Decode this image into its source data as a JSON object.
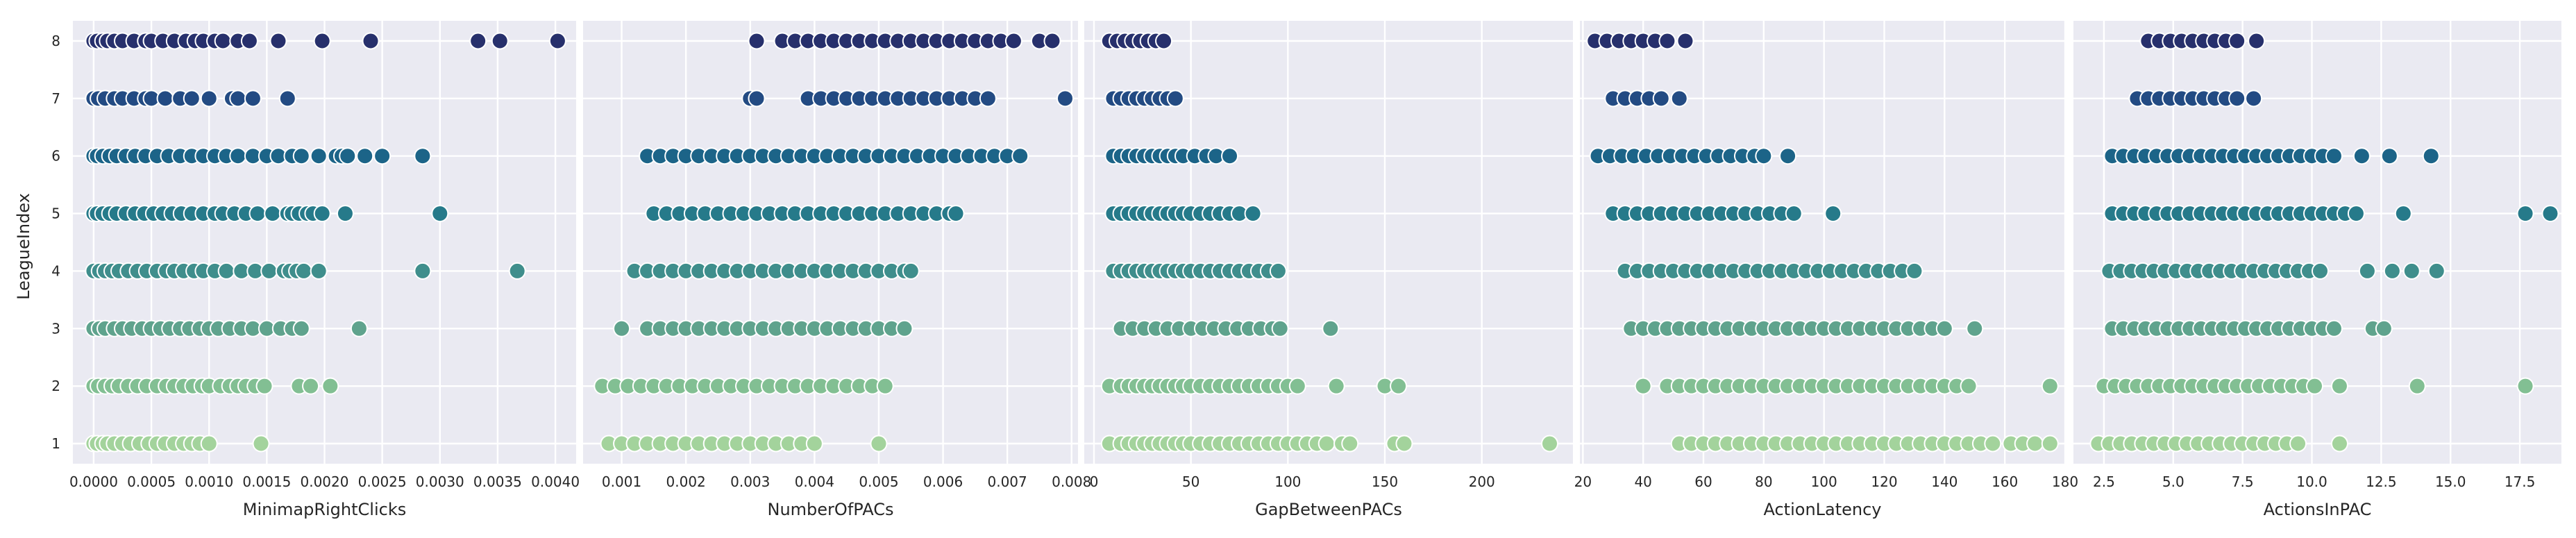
{
  "chart_data": {
    "type": "scatter",
    "shared_y": {
      "label": "LeagueIndex",
      "ticks": [
        1,
        2,
        3,
        4,
        5,
        6,
        7,
        8
      ],
      "ylim": [
        0.65,
        8.35
      ]
    },
    "hue_colors": {
      "1": "#a3d39c",
      "2": "#82bf93",
      "3": "#5fa38d",
      "4": "#3f8e8c",
      "5": "#267a8a",
      "6": "#1c6488",
      "7": "#234b83",
      "8": "#27306c"
    },
    "grid": true,
    "panels": [
      {
        "xlabel": "MinimapRightClicks",
        "xlim": [
          -0.00018,
          0.00418
        ],
        "xticks": [
          0.0,
          0.0005,
          0.001,
          0.0015,
          0.002,
          0.0025,
          0.003,
          0.0035,
          0.004
        ],
        "xtick_labels": [
          "0.0000",
          "0.0005",
          "0.0010",
          "0.0015",
          "0.0020",
          "0.0025",
          "0.0030",
          "0.0035",
          "0.0040"
        ],
        "points": {
          "1": [
            0.0,
            3e-05,
            8e-05,
            0.00012,
            0.00018,
            0.00025,
            0.00032,
            0.0004,
            0.00048,
            0.00055,
            0.00062,
            0.0007,
            0.00078,
            0.00085,
            0.00092,
            0.001,
            0.00145
          ],
          "2": [
            0.0,
            4e-05,
            0.0001,
            0.00016,
            0.00022,
            0.0003,
            0.00038,
            0.00046,
            0.00055,
            0.00063,
            0.0007,
            0.00078,
            0.00086,
            0.00094,
            0.001,
            0.0011,
            0.00118,
            0.00125,
            0.00132,
            0.0014,
            0.00148,
            0.00178,
            0.00188,
            0.00205
          ],
          "3": [
            0.0,
            5e-05,
            0.0001,
            0.00018,
            0.00025,
            0.00033,
            0.00042,
            0.0005,
            0.00058,
            0.00066,
            0.00075,
            0.00083,
            0.00092,
            0.001,
            0.00108,
            0.00118,
            0.00128,
            0.00138,
            0.0015,
            0.00162,
            0.00172,
            0.0018,
            0.0023
          ],
          "4": [
            0.0,
            5e-05,
            0.0001,
            0.00016,
            0.00022,
            0.0003,
            0.00038,
            0.00046,
            0.00055,
            0.00063,
            0.0007,
            0.00078,
            0.00087,
            0.00095,
            0.00105,
            0.00115,
            0.00128,
            0.0014,
            0.00152,
            0.00165,
            0.0017,
            0.00176,
            0.00182,
            0.00195,
            0.00285,
            0.00367
          ],
          "5": [
            0.0,
            3e-05,
            8e-05,
            0.00014,
            0.0002,
            0.00028,
            0.00036,
            0.00044,
            0.00052,
            0.0006,
            0.00068,
            0.00076,
            0.00085,
            0.00095,
            0.00105,
            0.00112,
            0.00122,
            0.00132,
            0.00142,
            0.00155,
            0.00168,
            0.00172,
            0.00178,
            0.00185,
            0.0019,
            0.00198,
            0.00218,
            0.003
          ],
          "6": [
            0.0,
            3e-05,
            8e-05,
            0.00014,
            0.0002,
            0.00028,
            0.00036,
            0.00045,
            0.00055,
            0.00065,
            0.00075,
            0.00085,
            0.00095,
            0.00105,
            0.00115,
            0.00125,
            0.00138,
            0.0015,
            0.0016,
            0.00172,
            0.0018,
            0.00195,
            0.0021,
            0.00215,
            0.0022,
            0.00235,
            0.0025,
            0.00285
          ],
          "7": [
            0.0,
            4e-05,
            0.0001,
            0.00018,
            0.00025,
            0.00035,
            0.00045,
            0.0005,
            0.00062,
            0.00075,
            0.00085,
            0.001,
            0.0012,
            0.00125,
            0.00138,
            0.00168
          ],
          "8": [
            0.0,
            3e-05,
            8e-05,
            0.00012,
            0.00018,
            0.00025,
            0.00035,
            0.00045,
            0.0005,
            0.0006,
            0.0007,
            0.0008,
            0.00088,
            0.00095,
            0.00105,
            0.00112,
            0.00125,
            0.00135,
            0.0016,
            0.00198,
            0.0024,
            0.00333,
            0.00352,
            0.00402
          ]
        }
      },
      {
        "xlabel": "NumberOfPACs",
        "xlim": [
          0.0004,
          0.0081
        ],
        "xticks": [
          0.001,
          0.002,
          0.003,
          0.004,
          0.005,
          0.006,
          0.007,
          0.008
        ],
        "xtick_labels": [
          "0.001",
          "0.002",
          "0.003",
          "0.004",
          "0.005",
          "0.006",
          "0.007",
          "0.008"
        ],
        "points": {
          "1": [
            0.0008,
            0.001,
            0.0012,
            0.0014,
            0.0016,
            0.0018,
            0.002,
            0.0022,
            0.0024,
            0.0026,
            0.0028,
            0.003,
            0.0032,
            0.0034,
            0.0036,
            0.0038,
            0.004,
            0.005
          ],
          "2": [
            0.0007,
            0.0009,
            0.0011,
            0.0013,
            0.0015,
            0.0017,
            0.0019,
            0.0021,
            0.0023,
            0.0025,
            0.0027,
            0.0029,
            0.0031,
            0.0033,
            0.0035,
            0.0037,
            0.0039,
            0.0041,
            0.0043,
            0.0045,
            0.0047,
            0.0049,
            0.0051
          ],
          "3": [
            0.001,
            0.0014,
            0.0016,
            0.0018,
            0.002,
            0.0022,
            0.0024,
            0.0026,
            0.0028,
            0.003,
            0.0032,
            0.0034,
            0.0036,
            0.0038,
            0.004,
            0.0042,
            0.0044,
            0.0046,
            0.0048,
            0.005,
            0.0052,
            0.0054
          ],
          "4": [
            0.0012,
            0.0014,
            0.0016,
            0.0018,
            0.002,
            0.0022,
            0.0024,
            0.0026,
            0.0028,
            0.003,
            0.0032,
            0.0034,
            0.0036,
            0.0038,
            0.004,
            0.0042,
            0.0044,
            0.0046,
            0.0048,
            0.005,
            0.0052,
            0.0054,
            0.0055
          ],
          "5": [
            0.0015,
            0.0017,
            0.0019,
            0.0021,
            0.0023,
            0.0025,
            0.0027,
            0.0029,
            0.0031,
            0.0033,
            0.0035,
            0.0037,
            0.0039,
            0.0041,
            0.0043,
            0.0045,
            0.0047,
            0.0049,
            0.0051,
            0.0053,
            0.0055,
            0.0057,
            0.0059,
            0.0061,
            0.0062
          ],
          "6": [
            0.0014,
            0.0016,
            0.0018,
            0.002,
            0.0022,
            0.0024,
            0.0026,
            0.0028,
            0.003,
            0.0032,
            0.0034,
            0.0036,
            0.0038,
            0.004,
            0.0042,
            0.0044,
            0.0046,
            0.0048,
            0.005,
            0.0052,
            0.0054,
            0.0056,
            0.0058,
            0.006,
            0.0062,
            0.0064,
            0.0066,
            0.0068,
            0.007,
            0.0072
          ],
          "7": [
            0.003,
            0.0031,
            0.0039,
            0.0041,
            0.0043,
            0.0045,
            0.0047,
            0.0049,
            0.0051,
            0.0053,
            0.0055,
            0.0057,
            0.0059,
            0.0061,
            0.0063,
            0.0065,
            0.0067,
            0.0079
          ],
          "8": [
            0.0031,
            0.0035,
            0.0037,
            0.0039,
            0.0041,
            0.0043,
            0.0045,
            0.0047,
            0.0049,
            0.0051,
            0.0053,
            0.0055,
            0.0057,
            0.0059,
            0.0061,
            0.0063,
            0.0065,
            0.0067,
            0.0069,
            0.0071,
            0.0075,
            0.0077
          ]
        }
      },
      {
        "xlabel": "GapBetweenPACs",
        "xlim": [
          -5,
          247
        ],
        "xticks": [
          0,
          50,
          100,
          150,
          200
        ],
        "xtick_labels": [
          "0",
          "50",
          "100",
          "150",
          "200"
        ],
        "points": {
          "1": [
            8,
            14,
            18,
            22,
            26,
            30,
            34,
            38,
            42,
            46,
            50,
            55,
            60,
            65,
            70,
            75,
            80,
            85,
            90,
            95,
            100,
            105,
            110,
            115,
            120,
            128,
            132,
            155,
            160,
            235
          ],
          "2": [
            8,
            14,
            18,
            22,
            26,
            30,
            34,
            38,
            42,
            46,
            50,
            55,
            60,
            65,
            70,
            75,
            80,
            85,
            90,
            95,
            100,
            105,
            125,
            150,
            157
          ],
          "3": [
            14,
            20,
            26,
            32,
            38,
            44,
            50,
            56,
            62,
            68,
            74,
            80,
            86,
            92,
            96,
            122
          ],
          "4": [
            10,
            14,
            18,
            22,
            26,
            30,
            34,
            38,
            42,
            46,
            50,
            55,
            60,
            65,
            70,
            75,
            80,
            85,
            90,
            95
          ],
          "5": [
            10,
            14,
            18,
            22,
            26,
            30,
            34,
            38,
            42,
            46,
            50,
            55,
            60,
            65,
            70,
            75,
            82
          ],
          "6": [
            10,
            14,
            18,
            22,
            26,
            30,
            34,
            38,
            42,
            46,
            52,
            58,
            63,
            70
          ],
          "7": [
            10,
            14,
            18,
            22,
            26,
            30,
            34,
            38,
            42
          ],
          "8": [
            8,
            12,
            16,
            20,
            24,
            28,
            32,
            36
          ]
        }
      },
      {
        "xlabel": "ActionLatency",
        "xlim": [
          19,
          180
        ],
        "xticks": [
          20,
          40,
          60,
          80,
          100,
          120,
          140,
          160,
          180
        ],
        "xtick_labels": [
          "20",
          "40",
          "60",
          "80",
          "100",
          "120",
          "140",
          "160",
          "180"
        ],
        "points": {
          "1": [
            52,
            56,
            60,
            64,
            68,
            72,
            76,
            80,
            84,
            88,
            92,
            96,
            100,
            104,
            108,
            112,
            116,
            120,
            124,
            128,
            132,
            136,
            140,
            144,
            148,
            152,
            156,
            162,
            166,
            170,
            175
          ],
          "2": [
            40,
            48,
            52,
            56,
            60,
            64,
            68,
            72,
            76,
            80,
            84,
            88,
            92,
            96,
            100,
            104,
            108,
            112,
            116,
            120,
            124,
            128,
            132,
            136,
            140,
            144,
            148,
            175
          ],
          "3": [
            36,
            40,
            44,
            48,
            52,
            56,
            60,
            64,
            68,
            72,
            76,
            80,
            84,
            88,
            92,
            96,
            100,
            104,
            108,
            112,
            116,
            120,
            124,
            128,
            132,
            136,
            140,
            150
          ],
          "4": [
            34,
            38,
            42,
            46,
            50,
            54,
            58,
            62,
            66,
            70,
            74,
            78,
            82,
            86,
            90,
            94,
            98,
            102,
            106,
            110,
            114,
            118,
            122,
            126,
            130
          ],
          "5": [
            30,
            34,
            38,
            42,
            46,
            50,
            54,
            58,
            62,
            66,
            70,
            74,
            78,
            82,
            86,
            90,
            103
          ],
          "6": [
            25,
            29,
            33,
            37,
            41,
            45,
            49,
            53,
            57,
            61,
            65,
            69,
            73,
            77,
            80,
            88
          ],
          "7": [
            30,
            34,
            38,
            42,
            46,
            52
          ],
          "8": [
            24,
            28,
            32,
            36,
            40,
            44,
            48,
            54
          ]
        }
      },
      {
        "xlabel": "ActionsInPAC",
        "xlim": [
          1.4,
          19.0
        ],
        "xticks": [
          2.5,
          5.0,
          7.5,
          10.0,
          12.5,
          15.0,
          17.5
        ],
        "xtick_labels": [
          "2.5",
          "5.0",
          "7.5",
          "10.0",
          "12.5",
          "15.0",
          "17.5"
        ],
        "points": {
          "1": [
            2.3,
            2.7,
            3.1,
            3.5,
            3.9,
            4.3,
            4.7,
            5.1,
            5.5,
            5.9,
            6.3,
            6.7,
            7.1,
            7.5,
            7.9,
            8.3,
            8.7,
            9.1,
            9.5,
            11.0
          ],
          "2": [
            2.5,
            2.9,
            3.3,
            3.7,
            4.1,
            4.5,
            4.9,
            5.3,
            5.7,
            6.1,
            6.5,
            6.9,
            7.3,
            7.7,
            8.1,
            8.5,
            8.9,
            9.3,
            9.7,
            10.1,
            11.0,
            13.8,
            17.7
          ],
          "3": [
            2.8,
            3.2,
            3.6,
            4.0,
            4.4,
            4.8,
            5.2,
            5.6,
            6.0,
            6.4,
            6.8,
            7.2,
            7.6,
            8.0,
            8.4,
            8.8,
            9.2,
            9.6,
            10.0,
            10.4,
            10.8,
            12.2,
            12.6
          ],
          "4": [
            2.7,
            3.1,
            3.5,
            3.9,
            4.3,
            4.7,
            5.1,
            5.5,
            5.9,
            6.3,
            6.7,
            7.1,
            7.5,
            7.9,
            8.3,
            8.7,
            9.1,
            9.5,
            9.9,
            10.3,
            12.0,
            12.9,
            13.6,
            14.5
          ],
          "5": [
            2.8,
            3.2,
            3.6,
            4.0,
            4.4,
            4.8,
            5.2,
            5.6,
            6.0,
            6.4,
            6.8,
            7.2,
            7.6,
            8.0,
            8.4,
            8.8,
            9.2,
            9.6,
            10.0,
            10.4,
            10.8,
            11.2,
            11.6,
            13.3,
            17.7,
            18.6
          ],
          "6": [
            2.8,
            3.2,
            3.6,
            4.0,
            4.4,
            4.8,
            5.2,
            5.6,
            6.0,
            6.4,
            6.8,
            7.2,
            7.6,
            8.0,
            8.4,
            8.8,
            9.2,
            9.6,
            10.0,
            10.4,
            10.8,
            11.8,
            12.8,
            14.3
          ],
          "7": [
            3.7,
            4.1,
            4.5,
            4.9,
            5.3,
            5.7,
            6.1,
            6.5,
            6.9,
            7.3,
            7.9
          ],
          "8": [
            4.1,
            4.5,
            4.9,
            5.3,
            5.7,
            6.1,
            6.5,
            6.9,
            7.3,
            8.0
          ]
        }
      }
    ]
  }
}
